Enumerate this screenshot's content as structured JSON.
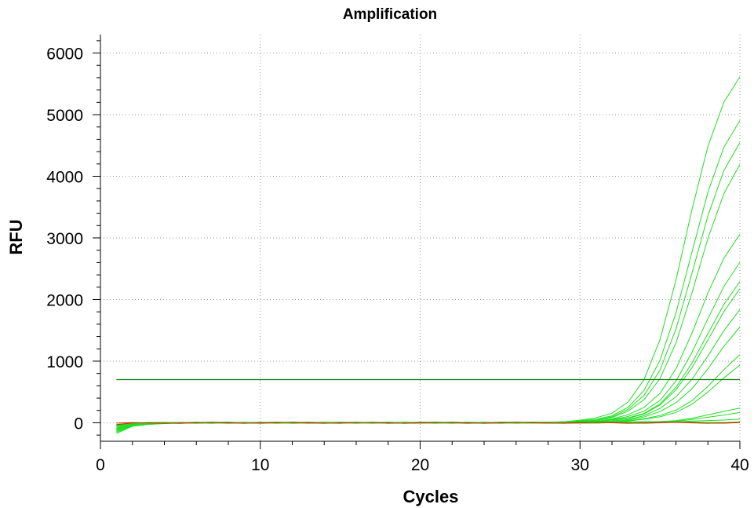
{
  "chart_data": {
    "type": "line",
    "title": "Amplification",
    "xlabel": "Cycles",
    "ylabel": "RFU",
    "xlim": [
      0,
      40
    ],
    "ylim": [
      -300,
      6300
    ],
    "x_ticks": [
      0,
      10,
      20,
      30,
      40
    ],
    "y_ticks": [
      0,
      1000,
      2000,
      3000,
      4000,
      5000,
      6000
    ],
    "grid": true,
    "threshold": {
      "value": 700,
      "x": [
        1,
        40
      ],
      "color": "#007a00"
    },
    "colors": {
      "positive": "#22dd22",
      "negative": "#cc3300"
    },
    "cycles": [
      1,
      2,
      3,
      4,
      5,
      6,
      7,
      8,
      9,
      10,
      11,
      12,
      13,
      14,
      15,
      16,
      17,
      18,
      19,
      20,
      21,
      22,
      23,
      24,
      25,
      26,
      27,
      28,
      29,
      30,
      31,
      32,
      33,
      34,
      35,
      36,
      37,
      38,
      39,
      40
    ],
    "series": [
      {
        "color": "#22dd22",
        "plateau": 6000,
        "midpoint": 36.6,
        "slope": 0.78,
        "start": -180
      },
      {
        "color": "#22dd22",
        "plateau": 5350,
        "midpoint": 36.9,
        "slope": 0.77,
        "start": -160
      },
      {
        "color": "#22dd22",
        "plateau": 5050,
        "midpoint": 37.1,
        "slope": 0.76,
        "start": -140
      },
      {
        "color": "#22dd22",
        "plateau": 4750,
        "midpoint": 37.3,
        "slope": 0.75,
        "start": -120
      },
      {
        "color": "#22dd22",
        "plateau": 3550,
        "midpoint": 37.5,
        "slope": 0.74,
        "start": -100
      },
      {
        "color": "#22dd22",
        "plateau": 3150,
        "midpoint": 37.8,
        "slope": 0.72,
        "start": -90
      },
      {
        "color": "#22dd22",
        "plateau": 2800,
        "midpoint": 37.9,
        "slope": 0.72,
        "start": -80
      },
      {
        "color": "#22dd22",
        "plateau": 2700,
        "midpoint": 38.0,
        "slope": 0.71,
        "start": -110
      },
      {
        "color": "#22dd22",
        "plateau": 2350,
        "midpoint": 38.2,
        "slope": 0.7,
        "start": -70
      },
      {
        "color": "#22dd22",
        "plateau": 2050,
        "midpoint": 38.4,
        "slope": 0.7,
        "start": -60
      },
      {
        "color": "#22dd22",
        "plateau": 1550,
        "midpoint": 38.7,
        "slope": 0.69,
        "start": -90
      },
      {
        "color": "#22dd22",
        "plateau": 1350,
        "midpoint": 38.8,
        "slope": 0.68,
        "start": -50
      },
      {
        "color": "#22dd22",
        "plateau": 400,
        "midpoint": 39.3,
        "slope": 0.65,
        "start": -40
      },
      {
        "color": "#22dd22",
        "plateau": 300,
        "midpoint": 39.5,
        "slope": 0.65,
        "start": -30
      },
      {
        "color": "#22dd22",
        "plateau": 120,
        "midpoint": 39.6,
        "slope": 0.6,
        "start": -20
      },
      {
        "color": "#22dd22",
        "plateau": 30,
        "midpoint": 39.8,
        "slope": 0.5,
        "start": -60
      },
      {
        "color": "#cc3300",
        "plateau": 0,
        "midpoint": 40,
        "slope": 0.5,
        "start": -30
      },
      {
        "color": "#cc3300",
        "plateau": 0,
        "midpoint": 40,
        "slope": 0.5,
        "start": -10
      }
    ]
  }
}
